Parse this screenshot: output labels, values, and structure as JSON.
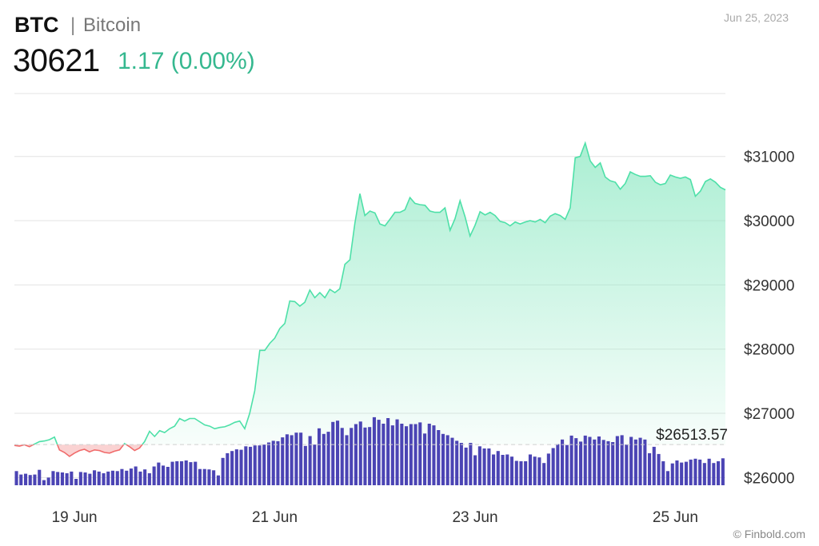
{
  "header": {
    "symbol": "BTC",
    "separator": "|",
    "name": "Bitcoin",
    "date": "Jun 25, 2023",
    "price": "30621",
    "change": "1.17 (0.00%)"
  },
  "footer": {
    "credit": "© Finbold.com"
  },
  "colors": {
    "up_line": "#4ee0a8",
    "up_fill": "#8fe9c4",
    "down_line": "#f06b6b",
    "down_fill": "#f7b4b4",
    "volume": "#4b44b4",
    "grid": "#e3e3e3",
    "baseline": "#cfcfcf"
  },
  "chart_data": {
    "type": "area",
    "series_name": "BTC price",
    "y_axis_position": "right",
    "ylim": [
      25880,
      31980
    ],
    "y_ticks": [
      26000,
      27000,
      28000,
      29000,
      30000,
      31000
    ],
    "y_tick_labels": [
      "$26000",
      "$27000",
      "$28000",
      "$29000",
      "$30000",
      "$31000"
    ],
    "x_tick_labels": [
      "19 Jun",
      "21 Jun",
      "23 Jun",
      "25 Jun"
    ],
    "x_tick_days": [
      19,
      21,
      23,
      25
    ],
    "x_range_days": [
      18.4,
      25.5
    ],
    "baseline_value": 26513.57,
    "baseline_label": "$26513.57",
    "grid": true,
    "price_points": [
      [
        18.4,
        26500
      ],
      [
        18.45,
        26490
      ],
      [
        18.5,
        26510
      ],
      [
        18.55,
        26480
      ],
      [
        18.6,
        26520
      ],
      [
        18.65,
        26560
      ],
      [
        18.7,
        26570
      ],
      [
        18.75,
        26590
      ],
      [
        18.8,
        26630
      ],
      [
        18.85,
        26430
      ],
      [
        18.9,
        26390
      ],
      [
        18.95,
        26330
      ],
      [
        19.0,
        26380
      ],
      [
        19.05,
        26420
      ],
      [
        19.1,
        26440
      ],
      [
        19.15,
        26400
      ],
      [
        19.2,
        26430
      ],
      [
        19.25,
        26420
      ],
      [
        19.3,
        26390
      ],
      [
        19.35,
        26380
      ],
      [
        19.4,
        26410
      ],
      [
        19.45,
        26430
      ],
      [
        19.5,
        26530
      ],
      [
        19.55,
        26480
      ],
      [
        19.6,
        26420
      ],
      [
        19.65,
        26460
      ],
      [
        19.7,
        26560
      ],
      [
        19.75,
        26720
      ],
      [
        19.8,
        26640
      ],
      [
        19.85,
        26730
      ],
      [
        19.9,
        26700
      ],
      [
        19.95,
        26760
      ],
      [
        20.0,
        26800
      ],
      [
        20.05,
        26920
      ],
      [
        20.1,
        26880
      ],
      [
        20.15,
        26920
      ],
      [
        20.2,
        26920
      ],
      [
        20.25,
        26870
      ],
      [
        20.3,
        26820
      ],
      [
        20.35,
        26800
      ],
      [
        20.4,
        26760
      ],
      [
        20.45,
        26780
      ],
      [
        20.5,
        26790
      ],
      [
        20.55,
        26820
      ],
      [
        20.6,
        26860
      ],
      [
        20.65,
        26880
      ],
      [
        20.7,
        26760
      ],
      [
        20.75,
        27000
      ],
      [
        20.8,
        27350
      ],
      [
        20.85,
        27980
      ],
      [
        20.9,
        27980
      ],
      [
        20.95,
        28090
      ],
      [
        21.0,
        28170
      ],
      [
        21.05,
        28320
      ],
      [
        21.1,
        28400
      ],
      [
        21.15,
        28750
      ],
      [
        21.2,
        28740
      ],
      [
        21.25,
        28670
      ],
      [
        21.3,
        28730
      ],
      [
        21.35,
        28920
      ],
      [
        21.4,
        28800
      ],
      [
        21.45,
        28880
      ],
      [
        21.5,
        28800
      ],
      [
        21.55,
        28930
      ],
      [
        21.6,
        28880
      ],
      [
        21.65,
        28940
      ],
      [
        21.7,
        29320
      ],
      [
        21.75,
        29390
      ],
      [
        21.8,
        29960
      ],
      [
        21.85,
        30420
      ],
      [
        21.9,
        30080
      ],
      [
        21.95,
        30150
      ],
      [
        22.0,
        30120
      ],
      [
        22.05,
        29950
      ],
      [
        22.1,
        29920
      ],
      [
        22.15,
        30020
      ],
      [
        22.2,
        30130
      ],
      [
        22.25,
        30130
      ],
      [
        22.3,
        30170
      ],
      [
        22.35,
        30360
      ],
      [
        22.4,
        30270
      ],
      [
        22.45,
        30250
      ],
      [
        22.5,
        30240
      ],
      [
        22.55,
        30150
      ],
      [
        22.6,
        30130
      ],
      [
        22.65,
        30130
      ],
      [
        22.7,
        30200
      ],
      [
        22.75,
        29850
      ],
      [
        22.8,
        30030
      ],
      [
        22.85,
        30310
      ],
      [
        22.9,
        30060
      ],
      [
        22.95,
        29760
      ],
      [
        23.0,
        29930
      ],
      [
        23.05,
        30140
      ],
      [
        23.1,
        30090
      ],
      [
        23.15,
        30130
      ],
      [
        23.2,
        30080
      ],
      [
        23.25,
        29990
      ],
      [
        23.3,
        29970
      ],
      [
        23.35,
        29920
      ],
      [
        23.4,
        29980
      ],
      [
        23.45,
        29950
      ],
      [
        23.5,
        29980
      ],
      [
        23.55,
        30000
      ],
      [
        23.6,
        29980
      ],
      [
        23.65,
        30020
      ],
      [
        23.7,
        29970
      ],
      [
        23.75,
        30070
      ],
      [
        23.8,
        30110
      ],
      [
        23.85,
        30080
      ],
      [
        23.9,
        30020
      ],
      [
        23.95,
        30200
      ],
      [
        24.0,
        30980
      ],
      [
        24.05,
        31000
      ],
      [
        24.1,
        31210
      ],
      [
        24.15,
        30930
      ],
      [
        24.2,
        30830
      ],
      [
        24.25,
        30900
      ],
      [
        24.3,
        30680
      ],
      [
        24.35,
        30620
      ],
      [
        24.4,
        30600
      ],
      [
        24.45,
        30490
      ],
      [
        24.5,
        30580
      ],
      [
        24.55,
        30760
      ],
      [
        24.6,
        30720
      ],
      [
        24.65,
        30690
      ],
      [
        24.7,
        30690
      ],
      [
        24.75,
        30700
      ],
      [
        24.8,
        30600
      ],
      [
        24.85,
        30560
      ],
      [
        24.9,
        30580
      ],
      [
        24.95,
        30710
      ],
      [
        25.0,
        30680
      ],
      [
        25.05,
        30660
      ],
      [
        25.1,
        30680
      ],
      [
        25.15,
        30640
      ],
      [
        25.2,
        30380
      ],
      [
        25.25,
        30460
      ],
      [
        25.3,
        30610
      ],
      [
        25.35,
        30650
      ],
      [
        25.4,
        30600
      ],
      [
        25.45,
        30520
      ],
      [
        25.5,
        30480
      ]
    ],
    "volume_relative": [
      0.33,
      0.25,
      0.27,
      0.24,
      0.25,
      0.36,
      0.12,
      0.18,
      0.33,
      0.31,
      0.3,
      0.28,
      0.32,
      0.15,
      0.31,
      0.3,
      0.27,
      0.35,
      0.32,
      0.28,
      0.32,
      0.34,
      0.33,
      0.38,
      0.34,
      0.39,
      0.44,
      0.32,
      0.37,
      0.28,
      0.44,
      0.53,
      0.46,
      0.43,
      0.55,
      0.56,
      0.56,
      0.58,
      0.54,
      0.55,
      0.38,
      0.38,
      0.37,
      0.35,
      0.23,
      0.64,
      0.75,
      0.8,
      0.84,
      0.83,
      0.91,
      0.9,
      0.93,
      0.93,
      0.95,
      1.0,
      1.04,
      1.03,
      1.12,
      1.19,
      1.17,
      1.23,
      1.23,
      0.92,
      1.15,
      0.95,
      1.33,
      1.2,
      1.25,
      1.48,
      1.51,
      1.34,
      1.17,
      1.34,
      1.43,
      1.49,
      1.35,
      1.36,
      1.59,
      1.53,
      1.44,
      1.57,
      1.4,
      1.54,
      1.44,
      1.38,
      1.43,
      1.43,
      1.47,
      1.21,
      1.44,
      1.4,
      1.29,
      1.2,
      1.17,
      1.11,
      1.04,
      0.99,
      0.88,
      0.99,
      0.7,
      0.91,
      0.86,
      0.86,
      0.72,
      0.8,
      0.71,
      0.72,
      0.67,
      0.57,
      0.56,
      0.56,
      0.72,
      0.67,
      0.65,
      0.52,
      0.74,
      0.87,
      0.96,
      1.07,
      0.94,
      1.16,
      1.1,
      1.02,
      1.16,
      1.13,
      1.07,
      1.14,
      1.06,
      1.03,
      1.01,
      1.15,
      1.17,
      0.95,
      1.13,
      1.07,
      1.11,
      1.07,
      0.75,
      0.9,
      0.73,
      0.56,
      0.33,
      0.51,
      0.58,
      0.53,
      0.55,
      0.6,
      0.62,
      0.6,
      0.52,
      0.62,
      0.52,
      0.56,
      0.63
    ]
  }
}
